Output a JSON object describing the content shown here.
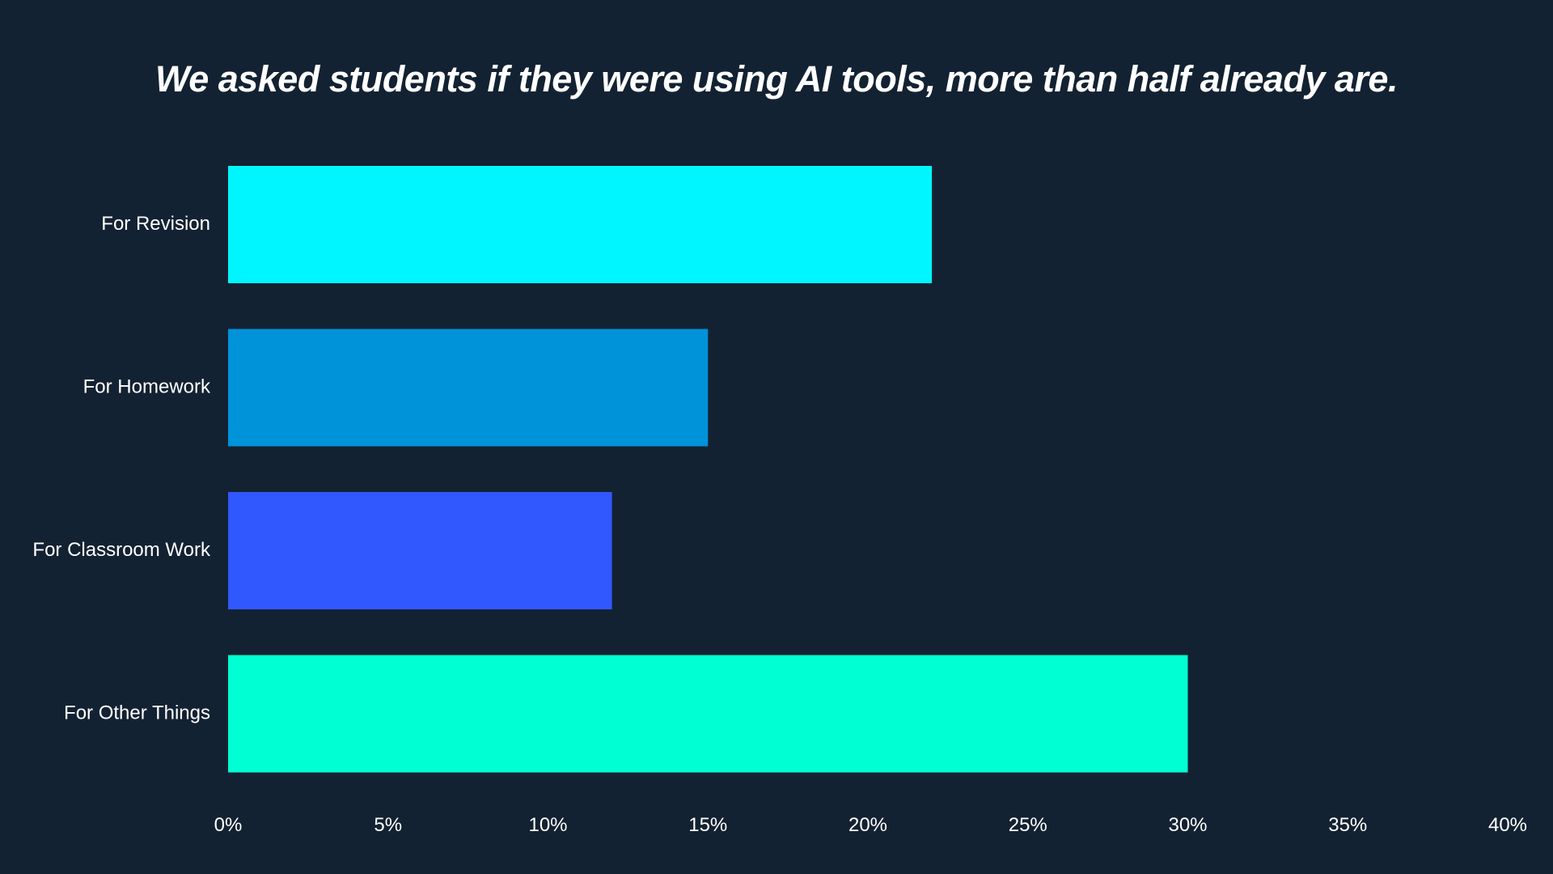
{
  "chart_data": {
    "type": "bar",
    "orientation": "horizontal",
    "title": "We asked students if they were using AI tools, more than half already are.",
    "categories": [
      "For Revision",
      "For Homework",
      "For Classroom Work",
      "For Other Things"
    ],
    "values": [
      22,
      15,
      12,
      30
    ],
    "colors": [
      "#00F6FF",
      "#0093D9",
      "#3158FF",
      "#00FFD2"
    ],
    "xlim": [
      0,
      40
    ],
    "xticks": [
      0,
      5,
      10,
      15,
      20,
      25,
      30,
      35,
      40
    ],
    "xtick_labels": [
      "0%",
      "5%",
      "10%",
      "15%",
      "20%",
      "25%",
      "30%",
      "35%",
      "40%"
    ],
    "xlabel": "",
    "ylabel": "",
    "grid": false,
    "legend": "none",
    "background": "#132232"
  }
}
